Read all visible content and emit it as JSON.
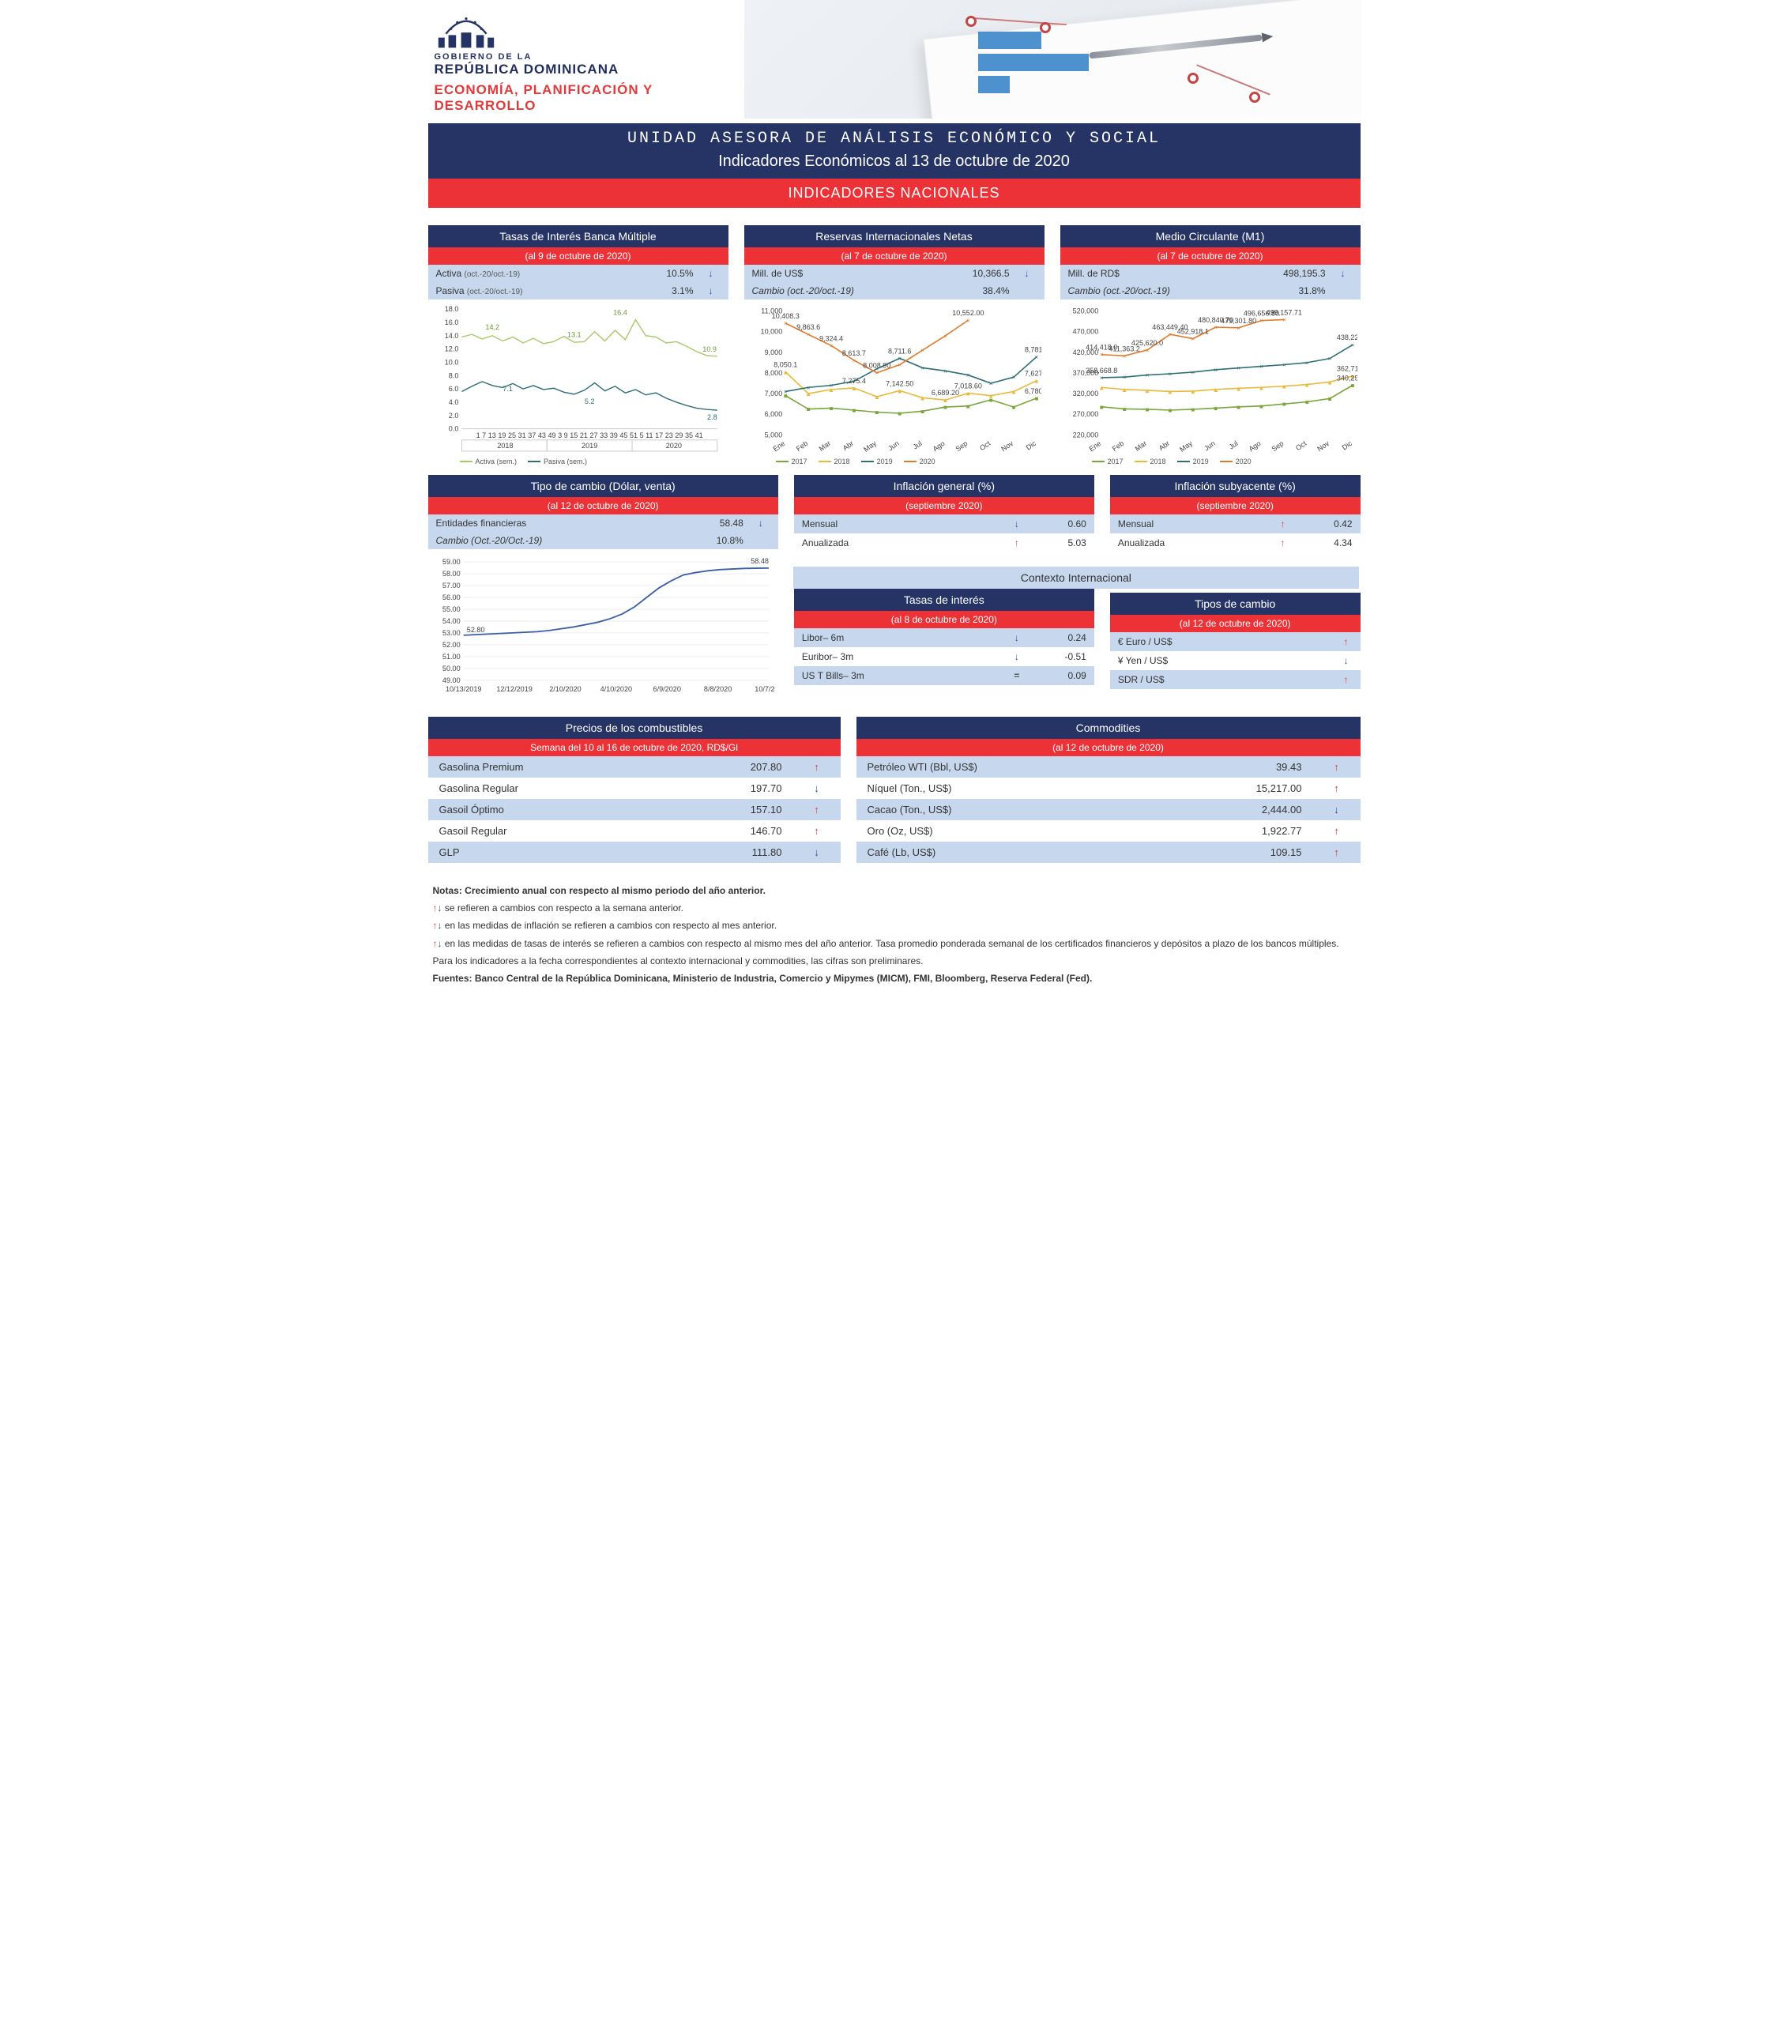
{
  "header": {
    "gov1": "GOBIERNO DE LA",
    "gov2": "REPÚBLICA DOMINICANA",
    "dept": "ECONOMÍA, PLANIFICACIÓN Y DESARROLLO"
  },
  "title": {
    "unit": "UNIDAD ASESORA DE ANÁLISIS ECONÓMICO Y SOCIAL",
    "subtitle": "Indicadores Económicos al 13 de octubre de 2020",
    "section": "INDICADORES NACIONALES"
  },
  "colors": {
    "navy": "#253365",
    "red": "#ec3237",
    "lightblue": "#c7d8ee",
    "series2017": "#7aa63a",
    "series2018": "#e8b93a",
    "series2019": "#2e6e74",
    "series2020": "#e07b2a",
    "activa": "#a7c96a",
    "pasiva": "#2e6e74",
    "blueLine": "#3b5fa6"
  },
  "months": [
    "Ene",
    "Feb",
    "Mar",
    "Abr",
    "May",
    "Jun",
    "Jul",
    "Ago",
    "Sep",
    "Oct",
    "Nov",
    "Dic"
  ],
  "rates": {
    "title": "Tasas de Interés Banca Múltiple",
    "asof": "(al 9 de octubre de 2020)",
    "rows": [
      {
        "label": "Activa",
        "sub": "(oct.-20/oct.-19)",
        "val": "10.5%",
        "dir": "down"
      },
      {
        "label": "Pasiva",
        "sub": "(oct.-20/oct.-19)",
        "val": "3.1%",
        "dir": "down"
      }
    ],
    "chart": {
      "ylim": [
        0,
        18
      ],
      "yticks": [
        0,
        2,
        4,
        6,
        8,
        10,
        12,
        14,
        16,
        18
      ],
      "annot_activa": [
        {
          "x": 0.12,
          "v": 14.2
        },
        {
          "x": 0.44,
          "v": 13.1
        },
        {
          "x": 0.62,
          "v": 16.4
        },
        {
          "x": 0.97,
          "v": 10.9
        }
      ],
      "annot_pasiva": [
        {
          "x": 0.18,
          "v": 7.1
        },
        {
          "x": 0.5,
          "v": 5.2
        },
        {
          "x": 0.98,
          "v": 2.8
        }
      ],
      "activa": [
        13.8,
        14.2,
        13.5,
        14.0,
        13.2,
        13.8,
        12.9,
        13.6,
        12.8,
        13.1,
        13.9,
        13.0,
        13.1,
        14.6,
        13.2,
        14.8,
        13.4,
        16.4,
        14.0,
        13.8,
        12.9,
        13.1,
        12.4,
        11.6,
        11.0,
        10.9
      ],
      "pasiva": [
        5.6,
        6.4,
        7.1,
        6.5,
        6.2,
        6.8,
        6.0,
        6.5,
        5.9,
        6.1,
        5.5,
        5.2,
        5.8,
        6.9,
        5.7,
        6.4,
        5.4,
        5.9,
        5.1,
        5.4,
        4.6,
        4.0,
        3.5,
        3.1,
        2.9,
        2.8
      ],
      "xgroups": [
        "2018",
        "2019",
        "2020"
      ],
      "xticks": "1 7 13 19 25 31 37 43 49  3 9 15 21 27 33 39 45 51  5 11 17 23 29 35 41",
      "legend": [
        "Activa (sem.)",
        "Pasiva (sem.)"
      ]
    }
  },
  "reserves": {
    "title": "Reservas Internacionales Netas",
    "asof": "(al 7 de octubre de 2020)",
    "rows": [
      {
        "label": "Mill. de US$",
        "val": "10,366.5",
        "dir": "down"
      },
      {
        "label_em": "Cambio (oct.-20/oct.-19)",
        "val": "38.4%",
        "dir": ""
      }
    ],
    "chart": {
      "ylim": [
        5000,
        11000
      ],
      "yticks": [
        5000,
        6000,
        7000,
        8000,
        9000,
        10000,
        11000
      ],
      "s2017": [
        6900,
        6250,
        6300,
        6200,
        6100,
        6050,
        6150,
        6350,
        6400,
        6700,
        6350,
        6780.4
      ],
      "s2018": [
        8050.1,
        7000,
        7200,
        7275.4,
        6850,
        7142.5,
        6800,
        6689.2,
        7018.6,
        6900,
        7100,
        7627.1
      ],
      "s2019": [
        7100,
        7300,
        7400,
        7600,
        8200,
        8711.6,
        8250,
        8100,
        7900,
        7500,
        7800,
        8781.4
      ],
      "s2020": [
        10408.3,
        9863.6,
        9324.4,
        8613.7,
        8008.9,
        8400,
        9100,
        9800,
        10552.0
      ],
      "annot": [
        {
          "s": "2020",
          "i": 0,
          "t": "10,408.3"
        },
        {
          "s": "2020",
          "i": 1,
          "t": "9,863.6"
        },
        {
          "s": "2020",
          "i": 2,
          "t": "9,324.4"
        },
        {
          "s": "2020",
          "i": 3,
          "t": "8,613.7"
        },
        {
          "s": "2020",
          "i": 4,
          "t": "8,008.90"
        },
        {
          "s": "2020",
          "i": 8,
          "t": "10,552.00"
        },
        {
          "s": "2018",
          "i": 0,
          "t": "8,050.1"
        },
        {
          "s": "2018",
          "i": 3,
          "t": "7,275.4"
        },
        {
          "s": "2018",
          "i": 5,
          "t": "7,142.50"
        },
        {
          "s": "2018",
          "i": 7,
          "t": "6,689.20"
        },
        {
          "s": "2018",
          "i": 8,
          "t": "7,018.60"
        },
        {
          "s": "2018",
          "i": 11,
          "t": "7,627.1"
        },
        {
          "s": "2019",
          "i": 5,
          "t": "8,711.6"
        },
        {
          "s": "2019",
          "i": 11,
          "t": "8,781.4"
        },
        {
          "s": "2017",
          "i": 11,
          "t": "6,780.4"
        }
      ]
    }
  },
  "m1": {
    "title": "Medio Circulante (M1)",
    "asof": "(al 7 de octubre de 2020)",
    "rows": [
      {
        "label": "Mill. de RD$",
        "val": "498,195.3",
        "dir": "down"
      },
      {
        "label_em": "Cambio (oct.-20/oct.-19)",
        "val": "31.8%",
        "dir": ""
      }
    ],
    "chart": {
      "ylim": [
        220000,
        520000
      ],
      "yticks": [
        220000,
        270000,
        320000,
        370000,
        420000,
        470000,
        520000
      ],
      "s2017": [
        288000,
        283000,
        282000,
        280000,
        282000,
        285000,
        288000,
        290000,
        295000,
        300000,
        308000,
        340250.5
      ],
      "s2018": [
        335000,
        330000,
        328000,
        325000,
        326000,
        330000,
        333000,
        335000,
        338000,
        342000,
        348000,
        362716.9
      ],
      "s2019": [
        358668.8,
        360000,
        365000,
        368000,
        372000,
        378000,
        382000,
        386000,
        390000,
        395000,
        405000,
        438222.9
      ],
      "s2020": [
        414418.0,
        411363.2,
        425620.0,
        463449.4,
        452918.1,
        480840.7,
        479301.8,
        496656.8,
        499157.71
      ],
      "annot": [
        {
          "s": "2019",
          "i": 0,
          "t": "358,668.8"
        },
        {
          "s": "2019",
          "i": 11,
          "t": "438,222.9"
        },
        {
          "s": "2020",
          "i": 0,
          "t": "414,418.0"
        },
        {
          "s": "2020",
          "i": 1,
          "t": "411,363.2"
        },
        {
          "s": "2020",
          "i": 2,
          "t": "425,620.0"
        },
        {
          "s": "2020",
          "i": 3,
          "t": "463,449.40"
        },
        {
          "s": "2020",
          "i": 4,
          "t": "452,918.1"
        },
        {
          "s": "2020",
          "i": 5,
          "t": "480,840.70"
        },
        {
          "s": "2020",
          "i": 6,
          "t": "479,301.80"
        },
        {
          "s": "2020",
          "i": 7,
          "t": "496,656.80"
        },
        {
          "s": "2020",
          "i": 8,
          "t": "499,157.71"
        },
        {
          "s": "2018",
          "i": 11,
          "t": "362,716.9"
        },
        {
          "s": "2017",
          "i": 11,
          "t": "340,250.5"
        }
      ]
    }
  },
  "fx": {
    "title": "Tipo de cambio (Dólar, venta)",
    "asof": "(al 12 de octubre de 2020)",
    "rows": [
      {
        "label": "Entidades financieras",
        "val": "58.48",
        "dir": "down"
      },
      {
        "label_em": "Cambio (Oct.-20/Oct.-19)",
        "val": "10.8%",
        "dir": ""
      }
    ],
    "chart": {
      "ylim": [
        49,
        59
      ],
      "yticks": [
        49,
        50,
        51,
        52,
        53,
        54,
        55,
        56,
        57,
        58,
        59
      ],
      "xlabels": [
        "10/13/2019",
        "12/12/2019",
        "2/10/2020",
        "4/10/2020",
        "6/9/2020",
        "8/8/2020",
        "10/7/202"
      ],
      "series": [
        52.8,
        52.85,
        52.9,
        52.95,
        53.0,
        53.05,
        53.1,
        53.2,
        53.35,
        53.5,
        53.7,
        53.9,
        54.2,
        54.6,
        55.2,
        56.0,
        56.8,
        57.4,
        57.9,
        58.1,
        58.25,
        58.35,
        58.4,
        58.45,
        58.47,
        58.48
      ],
      "start_label": "52.80",
      "end_label": "58.48"
    }
  },
  "infl_general": {
    "title": "Inflación general (%)",
    "asof": "(septiembre 2020)",
    "rows": [
      {
        "l": "Mensual",
        "v": "0.60",
        "d": "down"
      },
      {
        "l": "Anualizada",
        "v": "5.03",
        "d": "up"
      }
    ]
  },
  "infl_core": {
    "title": "Inflación subyacente (%)",
    "asof": "(septiembre 2020)",
    "rows": [
      {
        "l": "Mensual",
        "v": "0.42",
        "d": "up"
      },
      {
        "l": "Anualizada",
        "v": "4.34",
        "d": "up"
      }
    ]
  },
  "intl": {
    "head": "Contexto Internacional",
    "rates": {
      "title": "Tasas de interés",
      "asof": "(al 8 de octubre de 2020)",
      "rows": [
        {
          "l": "Libor– 6m",
          "d": "down",
          "v": "0.24"
        },
        {
          "l": "Euribor– 3m",
          "d": "down",
          "v": "-0.51"
        },
        {
          "l": "US T Bills– 3m",
          "d": "eq",
          "v": "0.09"
        }
      ]
    },
    "fx": {
      "title": "Tipos de cambio",
      "asof": "(al 12 de octubre de 2020)",
      "rows": [
        {
          "l": "€ Euro / US$",
          "d": "up"
        },
        {
          "l": "¥ Yen / US$",
          "d": "down"
        },
        {
          "l": "SDR / US$",
          "d": "up"
        }
      ]
    }
  },
  "fuel": {
    "title": "Precios de los combustibles",
    "asof": "Semana del 10 al 16 de octubre de 2020, RD$/Gl",
    "rows": [
      {
        "l": "Gasolina Premium",
        "v": "207.80",
        "d": "up"
      },
      {
        "l": "Gasolina Regular",
        "v": "197.70",
        "d": "down"
      },
      {
        "l": "Gasoil Óptimo",
        "v": "157.10",
        "d": "up"
      },
      {
        "l": "Gasoil Regular",
        "v": "146.70",
        "d": "up"
      },
      {
        "l": "GLP",
        "v": "111.80",
        "d": "down"
      }
    ]
  },
  "comm": {
    "title": "Commodities",
    "asof": "(al 12 de octubre de 2020)",
    "rows": [
      {
        "l": "Petróleo WTI (Bbl, US$)",
        "v": "39.43",
        "d": "up"
      },
      {
        "l": "Níquel (Ton., US$)",
        "v": "15,217.00",
        "d": "up"
      },
      {
        "l": "Cacao (Ton., US$)",
        "v": "2,444.00",
        "d": "down"
      },
      {
        "l": "Oro (Oz, US$)",
        "v": "1,922.77",
        "d": "up"
      },
      {
        "l": "Café (Lb, US$)",
        "v": "109.15",
        "d": "up"
      }
    ]
  },
  "notes": {
    "n1": "Notas: Crecimiento anual con respecto al mismo periodo del año anterior.",
    "n2": " se refieren a cambios con respecto a la semana anterior.",
    "n3": " en las medidas de inflación se refieren a cambios con respecto al mes anterior.",
    "n4": " en las medidas de tasas de interés se refieren a cambios con respecto al mismo mes del año anterior. Tasa promedio ponderada semanal de los certificados financieros y depósitos a plazo de los bancos múltiples.",
    "n5": "Para los indicadores a la fecha correspondientes al contexto internacional y commodities, las cifras son preliminares.",
    "n6": "Fuentes: Banco Central de la República Dominicana, Ministerio de Industria, Comercio y Mipymes (MICM), FMI, Bloomberg, Reserva Federal (Fed)."
  },
  "legend_years": [
    "2017",
    "2018",
    "2019",
    "2020"
  ]
}
